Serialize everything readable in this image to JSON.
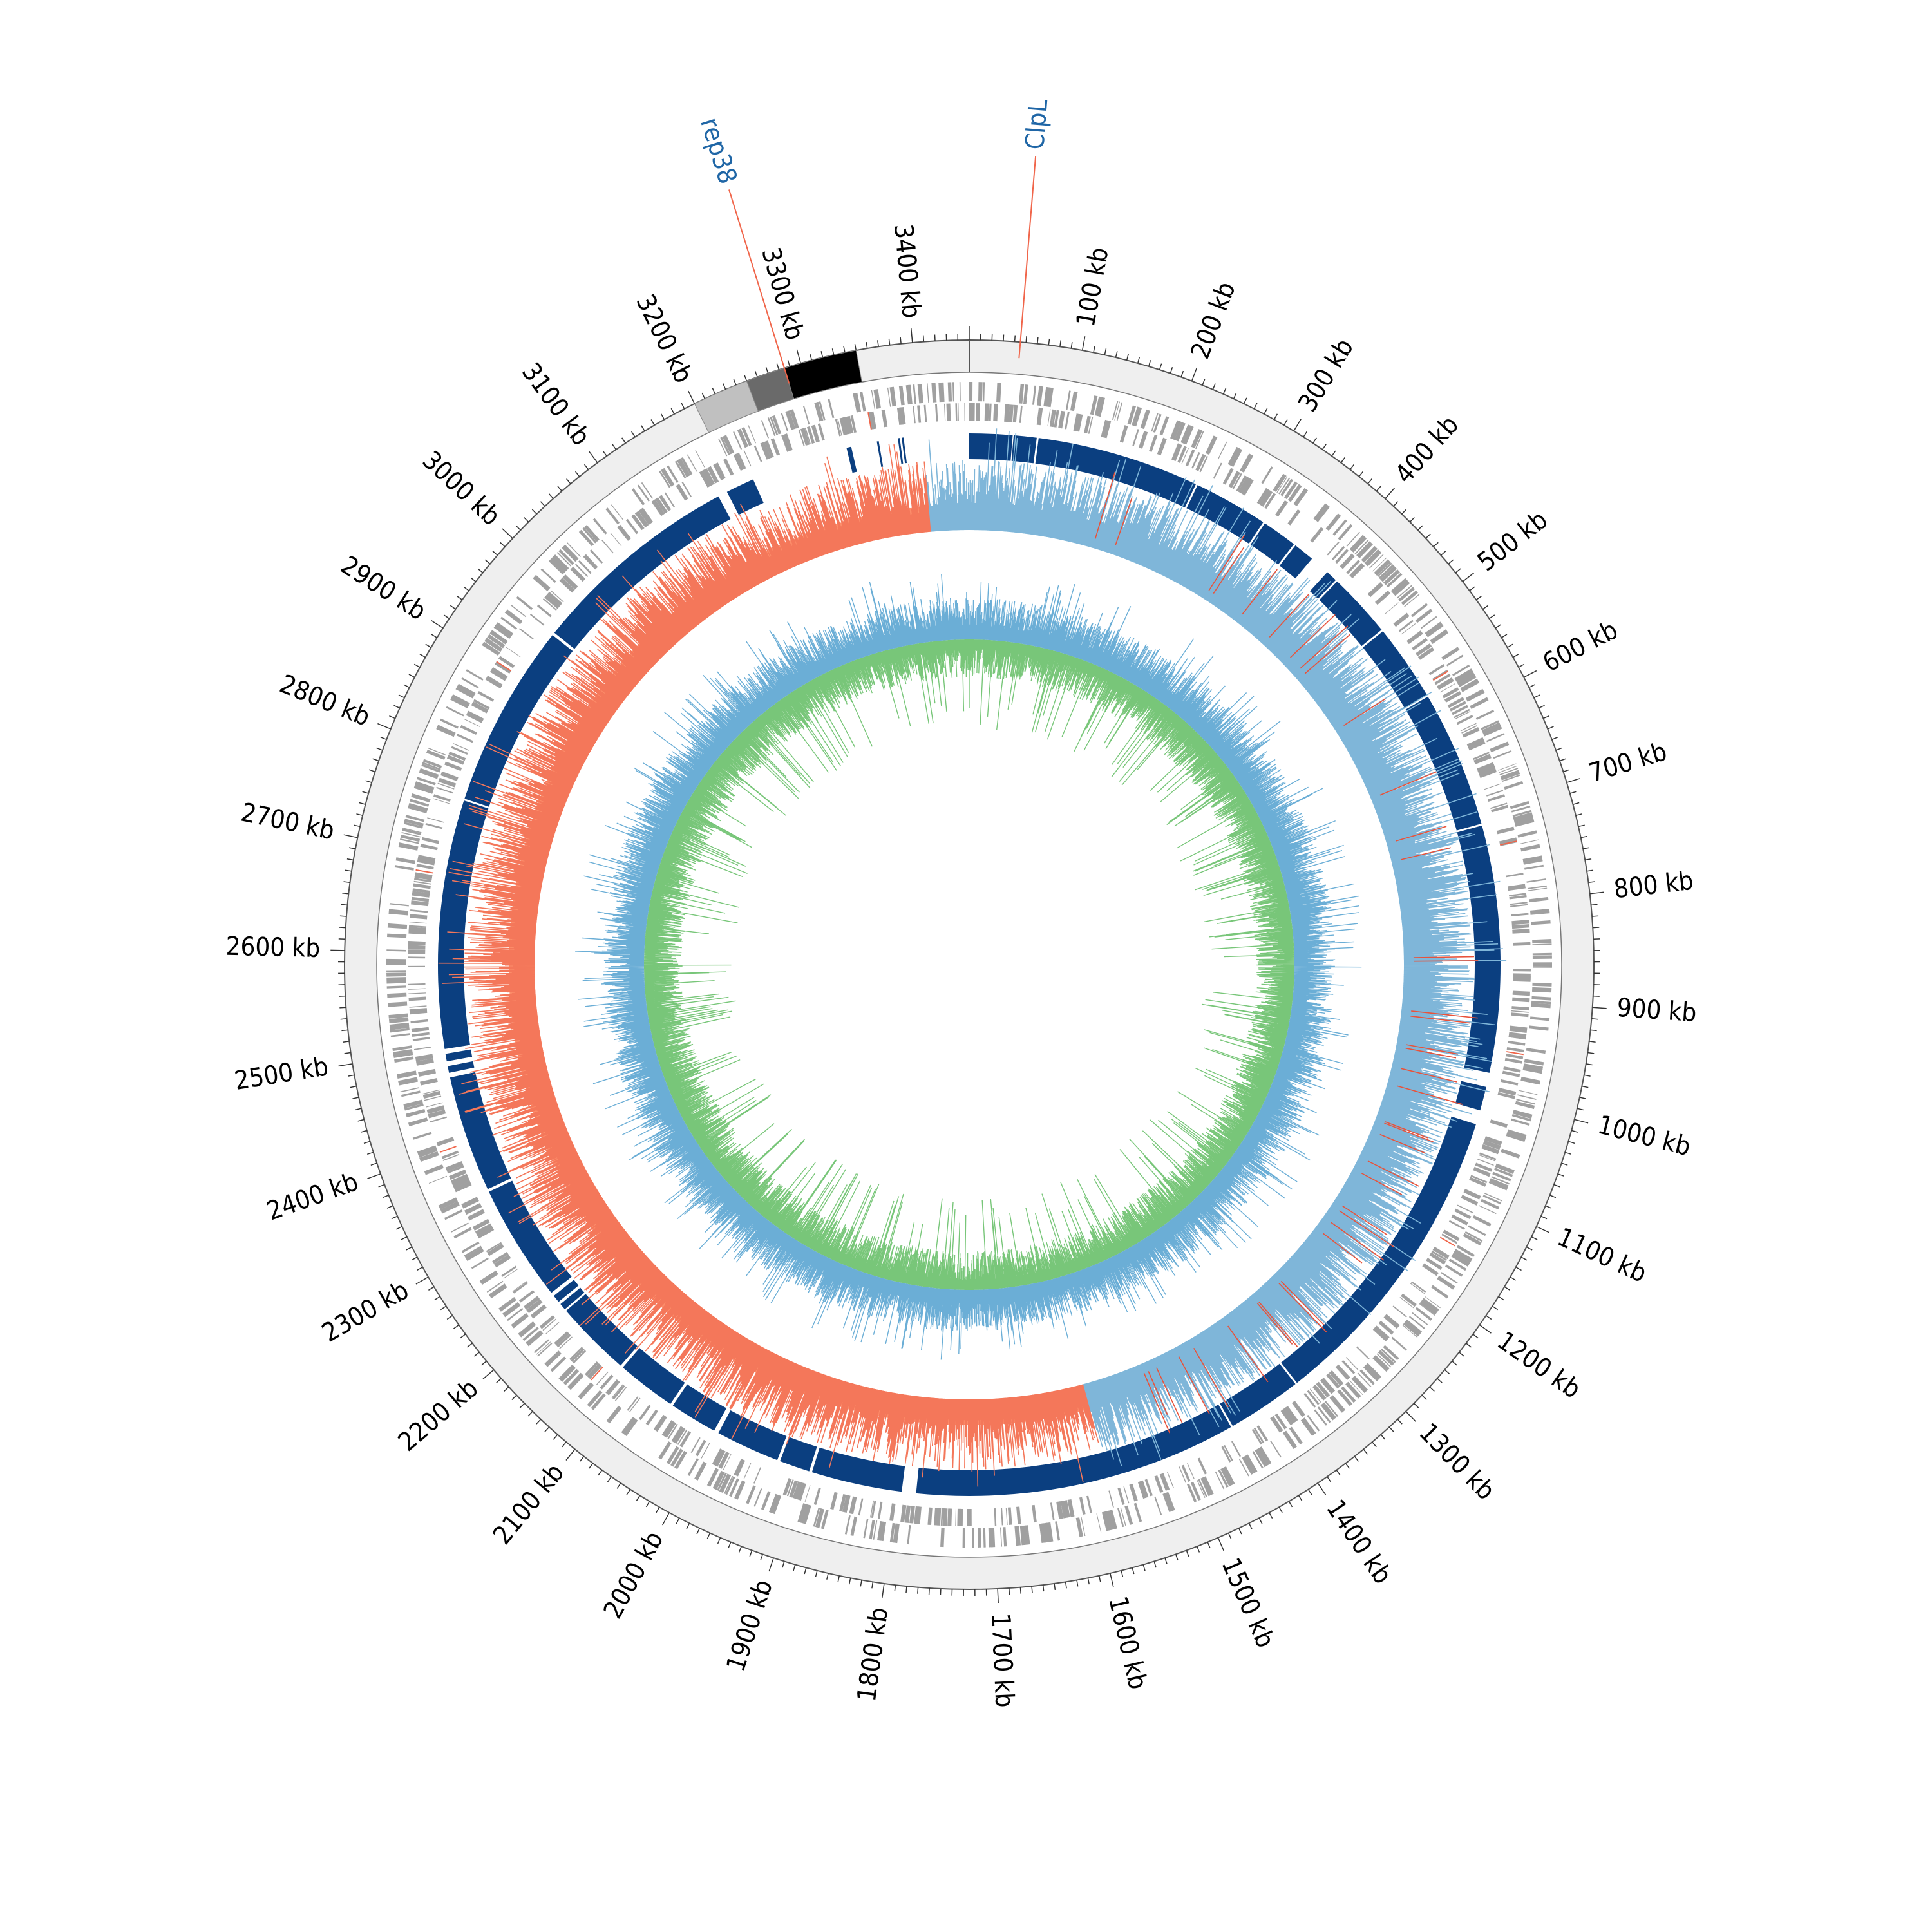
{
  "genome": {
    "length_kb": 3450,
    "major_tick_step_kb": 100,
    "minor_tick_step_kb": 10,
    "tick_unit": "kb",
    "tick_labels": [
      "100 kb",
      "200 kb",
      "300 kb",
      "400 kb",
      "500 kb",
      "600 kb",
      "700 kb",
      "800 kb",
      "900 kb",
      "1000 kb",
      "1100 kb",
      "1200 kb",
      "1300 kb",
      "1400 kb",
      "1500 kb",
      "1600 kb",
      "1700 kb",
      "1800 kb",
      "1900 kb",
      "2000 kb",
      "2100 kb",
      "2200 kb",
      "2300 kb",
      "2400 kb",
      "2500 kb",
      "2600 kb",
      "2700 kb",
      "2800 kb",
      "2900 kb",
      "3000 kb",
      "3100 kb",
      "3200 kb",
      "3300 kb",
      "3400 kb"
    ]
  },
  "annotations": [
    {
      "label": "ClpL",
      "position_kb": 45,
      "line_color": "#f0654a",
      "label_color": "#1f66a6"
    },
    {
      "label": "rep38",
      "position_kb": 3285,
      "line_color": "#f0654a",
      "label_color": "#1f66a6"
    }
  ],
  "colors": {
    "outer_band": "#efefef",
    "gene_marks": "#a0a0a0",
    "blocks": "#0b3f80",
    "skew_positive": "#9ecae1",
    "skew_negative": "#fc8d6a",
    "gc_content": "#6baed6",
    "gc_inner": "#78c679"
  },
  "chart_data": {
    "type": "circular-genome-map",
    "outer_segments": [
      {
        "start_kb": 3200,
        "end_kb": 3250,
        "color": "#c0c0c0"
      },
      {
        "start_kb": 3250,
        "end_kb": 3285,
        "color": "#6a6a6a"
      },
      {
        "start_kb": 3285,
        "end_kb": 3350,
        "color": "#000000"
      }
    ],
    "syntenic_blocks_kb": [
      [
        0,
        45
      ],
      [
        46,
        70
      ],
      [
        72,
        242
      ],
      [
        244,
        322
      ],
      [
        324,
        361
      ],
      [
        363,
        385
      ],
      [
        406,
        418
      ],
      [
        420,
        488
      ],
      [
        490,
        570
      ],
      [
        572,
        715
      ],
      [
        717,
        975
      ],
      [
        990,
        1015
      ],
      [
        1030,
        1360
      ],
      [
        1362,
        1440
      ],
      [
        1442,
        1780
      ],
      [
        1795,
        1890
      ],
      [
        1893,
        1925
      ],
      [
        1928,
        1995
      ],
      [
        2000,
        2050
      ],
      [
        2053,
        2115
      ],
      [
        2118,
        2198
      ],
      [
        2200,
        2207
      ],
      [
        2210,
        2218
      ],
      [
        2222,
        2345
      ],
      [
        2348,
        2470
      ],
      [
        2475,
        2482
      ],
      [
        2487,
        2495
      ],
      [
        2500,
        2760
      ],
      [
        2762,
        2955
      ],
      [
        2958,
        3180
      ],
      [
        3190,
        3220
      ],
      [
        3322,
        3327
      ],
      [
        3354,
        3356
      ],
      [
        3376,
        3378
      ],
      [
        3380,
        3382
      ]
    ],
    "gc_skew_switch_kb": [
      1580,
      3402
    ],
    "series": [
      {
        "name": "",
        "values": []
      }
    ]
  }
}
